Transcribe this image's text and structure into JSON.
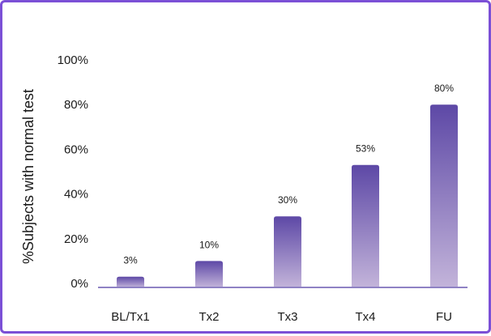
{
  "chart_data": {
    "type": "bar",
    "categories": [
      "BL/Tx1",
      "Tx2",
      "Tx3",
      "Tx4",
      "FU"
    ],
    "values": [
      3,
      10,
      30,
      53,
      80
    ],
    "data_labels": [
      "3%",
      "10%",
      "30%",
      "53%",
      "80%"
    ],
    "ylabel": "%Subjects with normal test",
    "ylim": [
      0,
      100
    ],
    "yticks": [
      "0%",
      "20%",
      "40%",
      "60%",
      "80%",
      "100%"
    ],
    "grid": false,
    "colors": {
      "bar_top": "#5d48a6",
      "bar_bottom": "#c3b4da",
      "axis": "#8f82c4",
      "frame": "#7b4fd6"
    }
  }
}
